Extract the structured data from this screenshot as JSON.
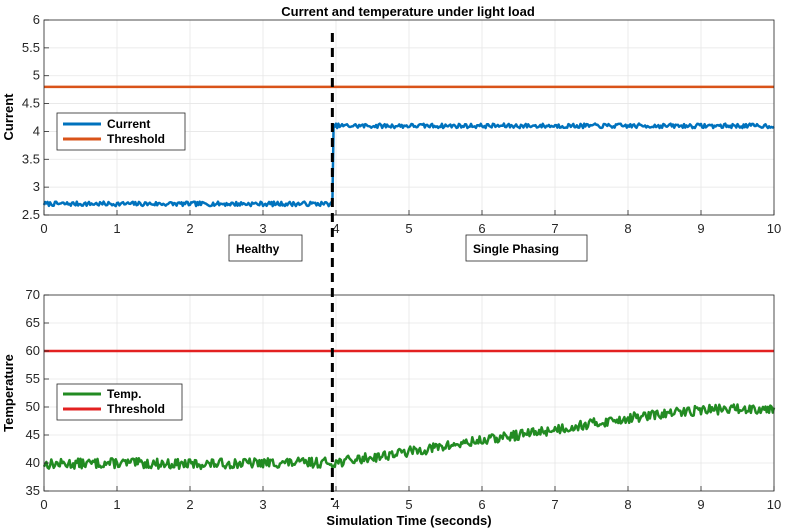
{
  "chart_data": [
    {
      "type": "line",
      "title": "Current and temperature under light load",
      "xlabel": "",
      "ylabel": "Current",
      "xlim": [
        0,
        10
      ],
      "ylim": [
        2.5,
        6
      ],
      "xticks": [
        "0",
        "1",
        "2",
        "3",
        "4",
        "5",
        "6",
        "7",
        "8",
        "9",
        "10"
      ],
      "yticks": [
        "2.5",
        "3",
        "3.5",
        "4",
        "4.5",
        "5",
        "5.5",
        "6"
      ],
      "grid": true,
      "legend_position": "left",
      "event_time": 3.95,
      "annotations": [
        "Healthy",
        "Single Phasing"
      ],
      "series": [
        {
          "name": "Current",
          "color": "#0072BD",
          "x": [
            0,
            3.95,
            3.95,
            10
          ],
          "y": [
            2.7,
            2.7,
            4.1,
            4.1
          ],
          "noise_amplitude": 0.04,
          "seed": 7
        },
        {
          "name": "Threshold",
          "color": "#D95319",
          "x": [
            0,
            10
          ],
          "y": [
            4.8,
            4.8
          ]
        }
      ]
    },
    {
      "type": "line",
      "title": "",
      "xlabel": "Simulation Time (seconds)",
      "ylabel": "Temperature",
      "xlim": [
        0,
        10
      ],
      "ylim": [
        35,
        70
      ],
      "xticks": [
        "0",
        "1",
        "2",
        "3",
        "4",
        "5",
        "6",
        "7",
        "8",
        "9",
        "10"
      ],
      "yticks": [
        "35",
        "40",
        "45",
        "50",
        "55",
        "60",
        "65",
        "70"
      ],
      "grid": true,
      "legend_position": "left",
      "event_time": 3.95,
      "series": [
        {
          "name": "Temp.",
          "color": "#228B22",
          "x": [
            0,
            1,
            2,
            3,
            4,
            5,
            6,
            7,
            8,
            9,
            10
          ],
          "y": [
            39.8,
            40.0,
            39.8,
            40.0,
            40.1,
            42.0,
            44.0,
            46.0,
            48.0,
            49.5,
            49.8
          ],
          "noise_amplitude": 0.9,
          "seed": 13
        },
        {
          "name": "Threshold",
          "color": "#E32121",
          "x": [
            0,
            10
          ],
          "y": [
            60,
            60
          ]
        }
      ]
    }
  ]
}
